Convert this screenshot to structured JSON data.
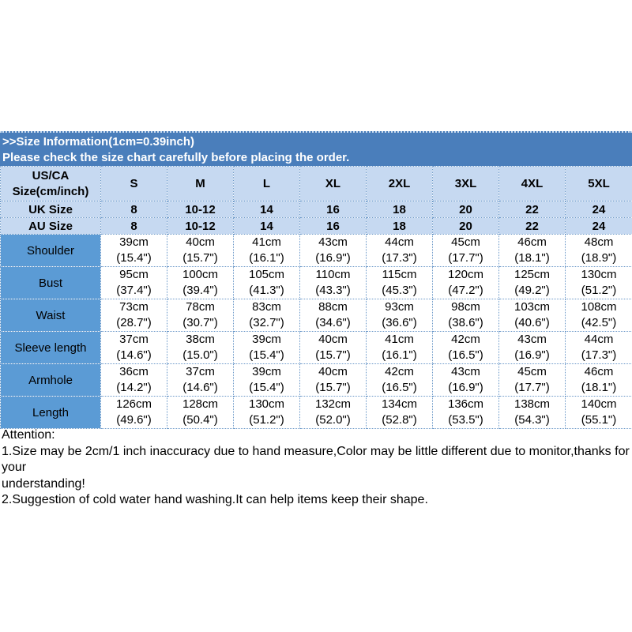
{
  "banner": {
    "line1": ">>Size Information(1cm=0.39inch)",
    "line2": "Please check the size chart carefully before placing the order.",
    "bg_color": "#4a7ebb",
    "text_color": "#ffffff"
  },
  "size_table": {
    "header_bg": "#c6d9f1",
    "label_col_bg": "#5b9bd5",
    "border_color": "#6b98c8",
    "corner": [
      "US/CA",
      "Size(cm/inch)"
    ],
    "columns": [
      "S",
      "M",
      "L",
      "XL",
      "2XL",
      "3XL",
      "4XL",
      "5XL"
    ],
    "size_rows": [
      {
        "label": "UK Size",
        "values": [
          "8",
          "10-12",
          "14",
          "16",
          "18",
          "20",
          "22",
          "24"
        ]
      },
      {
        "label": "AU Size",
        "values": [
          "8",
          "10-12",
          "14",
          "16",
          "18",
          "20",
          "22",
          "24"
        ]
      }
    ],
    "measure_rows": [
      {
        "label": "Shoulder",
        "cells": [
          [
            "39cm",
            "(15.4\")"
          ],
          [
            "40cm",
            "(15.7\")"
          ],
          [
            "41cm",
            "(16.1\")"
          ],
          [
            "43cm",
            "(16.9\")"
          ],
          [
            "44cm",
            "(17.3\")"
          ],
          [
            "45cm",
            "(17.7\")"
          ],
          [
            "46cm",
            "(18.1\")"
          ],
          [
            "48cm",
            "(18.9\")"
          ]
        ]
      },
      {
        "label": "Bust",
        "cells": [
          [
            "95cm",
            "(37.4\")"
          ],
          [
            "100cm",
            "(39.4\")"
          ],
          [
            "105cm",
            "(41.3\")"
          ],
          [
            "110cm",
            "(43.3\")"
          ],
          [
            "115cm",
            "(45.3\")"
          ],
          [
            "120cm",
            "(47.2\")"
          ],
          [
            "125cm",
            "(49.2\")"
          ],
          [
            "130cm",
            "(51.2\")"
          ]
        ]
      },
      {
        "label": "Waist",
        "cells": [
          [
            "73cm",
            "(28.7\")"
          ],
          [
            "78cm",
            "(30.7\")"
          ],
          [
            "83cm",
            "(32.7\")"
          ],
          [
            "88cm",
            "(34.6\")"
          ],
          [
            "93cm",
            "(36.6\")"
          ],
          [
            "98cm",
            "(38.6\")"
          ],
          [
            "103cm",
            "(40.6\")"
          ],
          [
            "108cm",
            "(42.5\")"
          ]
        ]
      },
      {
        "label": "Sleeve length",
        "cells": [
          [
            "37cm",
            "(14.6\")"
          ],
          [
            "38cm",
            "(15.0\")"
          ],
          [
            "39cm",
            "(15.4\")"
          ],
          [
            "40cm",
            "(15.7\")"
          ],
          [
            "41cm",
            "(16.1\")"
          ],
          [
            "42cm",
            "(16.5\")"
          ],
          [
            "43cm",
            "(16.9\")"
          ],
          [
            "44cm",
            "(17.3\")"
          ]
        ]
      },
      {
        "label": "Armhole",
        "cells": [
          [
            "36cm",
            "(14.2\")"
          ],
          [
            "37cm",
            "(14.6\")"
          ],
          [
            "39cm",
            "(15.4\")"
          ],
          [
            "40cm",
            "(15.7\")"
          ],
          [
            "42cm",
            "(16.5\")"
          ],
          [
            "43cm",
            "(16.9\")"
          ],
          [
            "45cm",
            "(17.7\")"
          ],
          [
            "46cm",
            "(18.1\")"
          ]
        ]
      },
      {
        "label": "Length",
        "cells": [
          [
            "126cm",
            "(49.6\")"
          ],
          [
            "128cm",
            "(50.4\")"
          ],
          [
            "130cm",
            "(51.2\")"
          ],
          [
            "132cm",
            "(52.0\")"
          ],
          [
            "134cm",
            "(52.8\")"
          ],
          [
            "136cm",
            "(53.5\")"
          ],
          [
            "138cm",
            "(54.3\")"
          ],
          [
            "140cm",
            "(55.1\")"
          ]
        ]
      }
    ]
  },
  "attention": {
    "title": "Attention:",
    "line1": "1.Size may be 2cm/1 inch inaccuracy due to hand measure,Color may be little different due to monitor,thanks for your",
    "line2": "understanding!",
    "line3": "2.Suggestion of cold water hand washing.It can help items keep their shape."
  }
}
